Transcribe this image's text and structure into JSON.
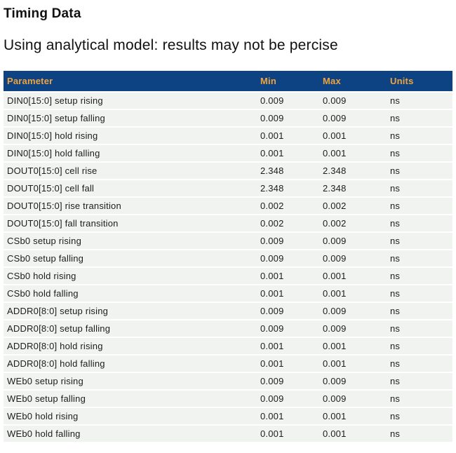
{
  "page": {
    "title": "Timing Data",
    "subtitle": "Using analytical model: results may not be percise"
  },
  "colors": {
    "header_bg": "#0e4383",
    "header_text": "#f0a33c",
    "row_bg": "#f1f3f1",
    "row_text": "#1c1c1c",
    "row_separator": "#ffffff"
  },
  "table": {
    "columns": [
      "Parameter",
      "Min",
      "Max",
      "Units"
    ],
    "rows": [
      {
        "parameter": "DIN0[15:0] setup rising",
        "min": "0.009",
        "max": "0.009",
        "units": "ns"
      },
      {
        "parameter": "DIN0[15:0] setup falling",
        "min": "0.009",
        "max": "0.009",
        "units": "ns"
      },
      {
        "parameter": "DIN0[15:0] hold rising",
        "min": "0.001",
        "max": "0.001",
        "units": "ns"
      },
      {
        "parameter": "DIN0[15:0] hold falling",
        "min": "0.001",
        "max": "0.001",
        "units": "ns"
      },
      {
        "parameter": "DOUT0[15:0] cell rise",
        "min": "2.348",
        "max": "2.348",
        "units": "ns"
      },
      {
        "parameter": "DOUT0[15:0] cell fall",
        "min": "2.348",
        "max": "2.348",
        "units": "ns"
      },
      {
        "parameter": "DOUT0[15:0] rise transition",
        "min": "0.002",
        "max": "0.002",
        "units": "ns"
      },
      {
        "parameter": "DOUT0[15:0] fall transition",
        "min": "0.002",
        "max": "0.002",
        "units": "ns"
      },
      {
        "parameter": "CSb0 setup rising",
        "min": "0.009",
        "max": "0.009",
        "units": "ns"
      },
      {
        "parameter": "CSb0 setup falling",
        "min": "0.009",
        "max": "0.009",
        "units": "ns"
      },
      {
        "parameter": "CSb0 hold rising",
        "min": "0.001",
        "max": "0.001",
        "units": "ns"
      },
      {
        "parameter": "CSb0 hold falling",
        "min": "0.001",
        "max": "0.001",
        "units": "ns"
      },
      {
        "parameter": "ADDR0[8:0] setup rising",
        "min": "0.009",
        "max": "0.009",
        "units": "ns"
      },
      {
        "parameter": "ADDR0[8:0] setup falling",
        "min": "0.009",
        "max": "0.009",
        "units": "ns"
      },
      {
        "parameter": "ADDR0[8:0] hold rising",
        "min": "0.001",
        "max": "0.001",
        "units": "ns"
      },
      {
        "parameter": "ADDR0[8:0] hold falling",
        "min": "0.001",
        "max": "0.001",
        "units": "ns"
      },
      {
        "parameter": "WEb0 setup rising",
        "min": "0.009",
        "max": "0.009",
        "units": "ns"
      },
      {
        "parameter": "WEb0 setup falling",
        "min": "0.009",
        "max": "0.009",
        "units": "ns"
      },
      {
        "parameter": "WEb0 hold rising",
        "min": "0.001",
        "max": "0.001",
        "units": "ns"
      },
      {
        "parameter": "WEb0 hold falling",
        "min": "0.001",
        "max": "0.001",
        "units": "ns"
      }
    ]
  }
}
